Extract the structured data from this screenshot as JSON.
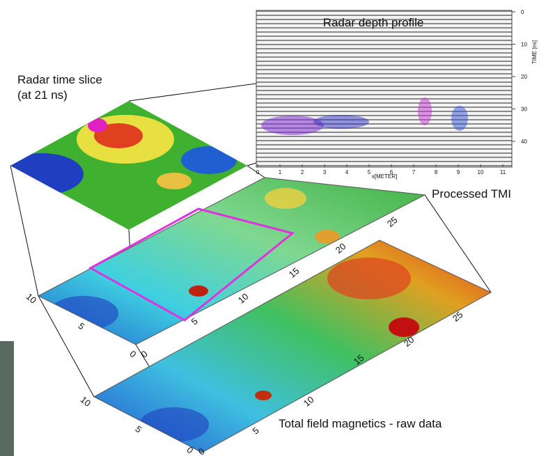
{
  "radar_profile": {
    "title": "Radar depth profile",
    "time_label": "TIME [ns]",
    "time_ticks": [
      "0",
      "10",
      "20",
      "30",
      "40"
    ],
    "x_label": "x[METER]",
    "x_ticks": [
      "0",
      "1",
      "2",
      "3",
      "4",
      "5",
      "6",
      "7",
      "8",
      "9",
      "10",
      "11"
    ]
  },
  "time_slice": {
    "lines": [
      "Radar time slice",
      "(at 21 ns)"
    ]
  },
  "processed_tmi": {
    "label": "Processed TMI",
    "x_ticks": [
      "0",
      "5",
      "10",
      "15",
      "20",
      "25"
    ],
    "y_ticks": [
      "10",
      "5",
      "0"
    ]
  },
  "raw_data": {
    "label": "Total field magnetics - raw data",
    "x_ticks": [
      "0",
      "5",
      "10",
      "15",
      "20",
      "25"
    ],
    "y_ticks": [
      "10",
      "5",
      "0"
    ]
  }
}
